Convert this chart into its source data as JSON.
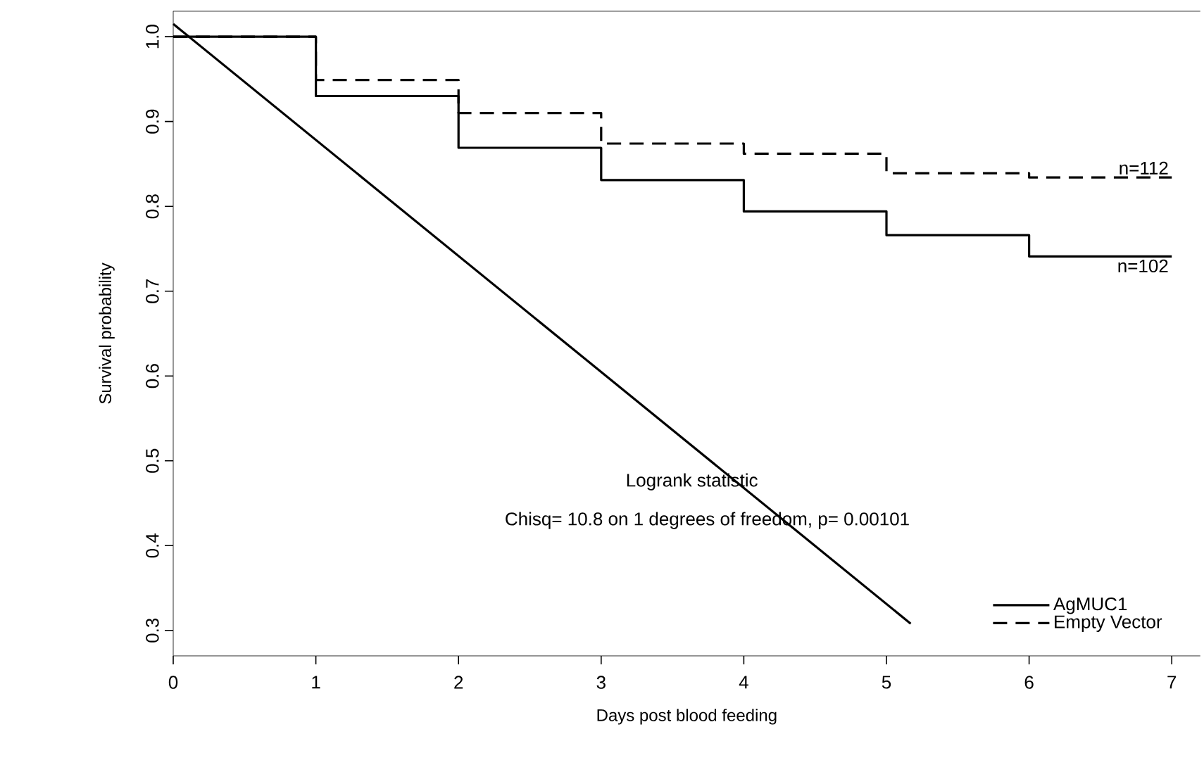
{
  "chart_data": {
    "type": "step",
    "xlabel": "Days post blood feeding",
    "ylabel": "Survival probability",
    "xlim": [
      0,
      7.2
    ],
    "ylim": [
      0.27,
      1.03
    ],
    "xticks": [
      0,
      1,
      2,
      3,
      4,
      5,
      6,
      7
    ],
    "yticks": [
      0.3,
      0.4,
      0.5,
      0.6,
      0.7,
      0.8,
      0.9,
      {
        "value": 1.0,
        "label": "1.0"
      }
    ],
    "grid": false,
    "legend": "bottom right",
    "series": [
      {
        "name": "AgMUC1",
        "color": "#000000",
        "line_style": "solid",
        "x": [
          0,
          1,
          2,
          3,
          4,
          5,
          6,
          7
        ],
        "values": [
          1.0,
          0.93,
          0.869,
          0.831,
          0.794,
          0.766,
          0.741,
          0.741
        ]
      },
      {
        "name": "Empty Vector",
        "color": "#000000",
        "line_style": "dashed",
        "x": [
          0,
          1,
          2,
          3,
          4,
          5,
          6,
          7
        ],
        "values": [
          1.0,
          0.949,
          0.91,
          0.874,
          0.862,
          0.839,
          0.834,
          0.834
        ]
      },
      {
        "type": "line",
        "color": "#000000",
        "line_style": "solid",
        "x": [
          0,
          5.17
        ],
        "values": [
          1.015,
          0.308
        ]
      }
    ],
    "annotations": [
      {
        "text": "n=112",
        "x": 7,
        "y": 0.834
      },
      {
        "text": "n=102",
        "x": 7,
        "y": 0.741
      },
      "Logrank statistic",
      "Chisq= 10.8  on 1 degrees of freedom, p= 0.00101"
    ]
  }
}
